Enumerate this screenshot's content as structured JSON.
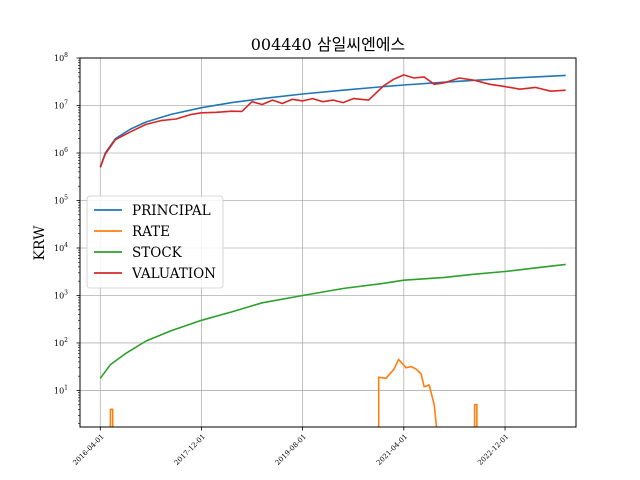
{
  "chart_data": {
    "type": "line",
    "title": "004440 삼일씨엔에스",
    "xlabel": "",
    "ylabel": "KRW",
    "yscale": "log",
    "ylim": [
      1.7,
      100000000
    ],
    "y_tick_labels": [
      "10^1",
      "10^2",
      "10^3",
      "10^4",
      "10^5",
      "10^6",
      "10^7",
      "10^8"
    ],
    "x_tick_labels": [
      "2016-04-01",
      "2017-12-01",
      "2019-08-01",
      "2021-04-01",
      "2022-12-01"
    ],
    "x_tick_dates": [
      "2016-04-01",
      "2017-12-01",
      "2019-08-01",
      "2021-04-01",
      "2022-12-01"
    ],
    "xlim": [
      "2015-12-01",
      "2024-02-01"
    ],
    "grid": true,
    "legend_position": "center-left",
    "series": [
      {
        "name": "PRINCIPAL",
        "color": "#1f77b4",
        "points": [
          [
            "2016-04-01",
            500000
          ],
          [
            "2016-05-01",
            1000000
          ],
          [
            "2016-07-01",
            2000000
          ],
          [
            "2016-10-01",
            3200000
          ],
          [
            "2017-01-01",
            4500000
          ],
          [
            "2017-06-01",
            6500000
          ],
          [
            "2017-12-01",
            9000000
          ],
          [
            "2018-06-01",
            11500000
          ],
          [
            "2018-12-01",
            14000000
          ],
          [
            "2019-08-01",
            17500000
          ],
          [
            "2020-04-01",
            21000000
          ],
          [
            "2020-12-01",
            25000000
          ],
          [
            "2021-04-01",
            27000000
          ],
          [
            "2021-12-01",
            31000000
          ],
          [
            "2022-06-01",
            34000000
          ],
          [
            "2022-12-01",
            37000000
          ],
          [
            "2023-06-01",
            40000000
          ],
          [
            "2023-12-01",
            43000000
          ]
        ]
      },
      {
        "name": "RATE",
        "color": "#ff7f0e",
        "segments": [
          [
            [
              "2016-06-01",
              1.5
            ],
            [
              "2016-06-01",
              4
            ],
            [
              "2016-06-15",
              4
            ],
            [
              "2016-06-15",
              1.5
            ]
          ],
          [
            [
              "2020-11-01",
              1.5
            ],
            [
              "2020-11-01",
              19
            ],
            [
              "2020-12-15",
              18
            ],
            [
              "2021-02-01",
              28
            ],
            [
              "2021-03-01",
              45
            ],
            [
              "2021-04-15",
              30
            ],
            [
              "2021-05-15",
              32
            ],
            [
              "2021-06-15",
              28
            ],
            [
              "2021-07-15",
              22
            ],
            [
              "2021-08-01",
              12
            ],
            [
              "2021-09-01",
              13
            ],
            [
              "2021-10-01",
              5
            ],
            [
              "2021-10-15",
              1.5
            ]
          ],
          [
            [
              "2022-06-01",
              1.5
            ],
            [
              "2022-06-01",
              5
            ],
            [
              "2022-06-15",
              5
            ],
            [
              "2022-06-15",
              1.5
            ]
          ]
        ]
      },
      {
        "name": "STOCK",
        "color": "#2ca02c",
        "points": [
          [
            "2016-04-01",
            18
          ],
          [
            "2016-06-01",
            35
          ],
          [
            "2016-09-01",
            60
          ],
          [
            "2017-01-01",
            110
          ],
          [
            "2017-06-01",
            180
          ],
          [
            "2017-12-01",
            300
          ],
          [
            "2018-06-01",
            450
          ],
          [
            "2018-12-01",
            700
          ],
          [
            "2019-08-01",
            1000
          ],
          [
            "2020-04-01",
            1400
          ],
          [
            "2020-12-01",
            1800
          ],
          [
            "2021-04-01",
            2100
          ],
          [
            "2021-12-01",
            2400
          ],
          [
            "2022-06-01",
            2800
          ],
          [
            "2022-12-01",
            3200
          ],
          [
            "2023-06-01",
            3800
          ],
          [
            "2023-12-01",
            4500
          ]
        ]
      },
      {
        "name": "VALUATION",
        "color": "#d62728",
        "points": [
          [
            "2016-04-01",
            500000
          ],
          [
            "2016-05-01",
            950000
          ],
          [
            "2016-07-01",
            1900000
          ],
          [
            "2016-10-01",
            2800000
          ],
          [
            "2017-01-01",
            4000000
          ],
          [
            "2017-04-01",
            4800000
          ],
          [
            "2017-07-01",
            5200000
          ],
          [
            "2017-10-01",
            6500000
          ],
          [
            "2017-12-01",
            7000000
          ],
          [
            "2018-03-01",
            7200000
          ],
          [
            "2018-06-01",
            7600000
          ],
          [
            "2018-08-01",
            7500000
          ],
          [
            "2018-10-01",
            12000000
          ],
          [
            "2018-12-01",
            10500000
          ],
          [
            "2019-02-01",
            13000000
          ],
          [
            "2019-04-01",
            11000000
          ],
          [
            "2019-06-01",
            13500000
          ],
          [
            "2019-08-01",
            12500000
          ],
          [
            "2019-10-01",
            14000000
          ],
          [
            "2019-12-01",
            12000000
          ],
          [
            "2020-02-01",
            13000000
          ],
          [
            "2020-04-01",
            11500000
          ],
          [
            "2020-06-01",
            14000000
          ],
          [
            "2020-09-01",
            13000000
          ],
          [
            "2020-12-01",
            26000000
          ],
          [
            "2021-02-01",
            36000000
          ],
          [
            "2021-04-01",
            44000000
          ],
          [
            "2021-06-01",
            38000000
          ],
          [
            "2021-08-01",
            40000000
          ],
          [
            "2021-10-01",
            28000000
          ],
          [
            "2021-12-01",
            30000000
          ],
          [
            "2022-03-01",
            38000000
          ],
          [
            "2022-06-01",
            34000000
          ],
          [
            "2022-09-01",
            28000000
          ],
          [
            "2022-12-01",
            25000000
          ],
          [
            "2023-03-01",
            22000000
          ],
          [
            "2023-06-01",
            24000000
          ],
          [
            "2023-09-01",
            20000000
          ],
          [
            "2023-12-01",
            21000000
          ]
        ]
      }
    ]
  }
}
